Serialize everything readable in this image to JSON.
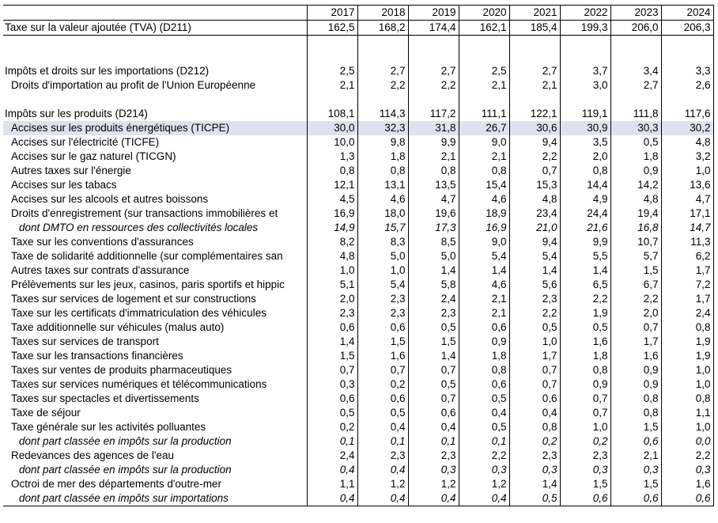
{
  "years": [
    "2017",
    "2018",
    "2019",
    "2020",
    "2021",
    "2022",
    "2023",
    "2024"
  ],
  "rows": [
    {
      "label": "Taxe sur la valeur ajoutée (TVA) (D211)",
      "values": [
        "162,5",
        "168,2",
        "174,4",
        "162,1",
        "185,4",
        "199,3",
        "206,0",
        "206,3"
      ],
      "indent": 0,
      "italic": false
    },
    {
      "label": "",
      "values": [
        "",
        "",
        "",
        "",
        "",
        "",
        "",
        ""
      ],
      "indent": 0,
      "italic": false
    },
    {
      "label": "",
      "values": [
        "",
        "",
        "",
        "",
        "",
        "",
        "",
        ""
      ],
      "indent": 0,
      "italic": false
    },
    {
      "label": "Impôts et droits sur les importations (D212)",
      "values": [
        "2,5",
        "2,7",
        "2,7",
        "2,5",
        "2,7",
        "3,7",
        "3,4",
        "3,3"
      ],
      "indent": 0,
      "italic": false
    },
    {
      "label": "Droits d'importation au profit de l'Union Européenne",
      "values": [
        "2,1",
        "2,2",
        "2,2",
        "2,1",
        "2,1",
        "3,0",
        "2,7",
        "2,6"
      ],
      "indent": 1,
      "italic": false
    },
    {
      "label": "",
      "values": [
        "",
        "",
        "",
        "",
        "",
        "",
        "",
        ""
      ],
      "indent": 0,
      "italic": false
    },
    {
      "label": "Impôts sur les produits (D214)",
      "values": [
        "108,1",
        "114,3",
        "117,2",
        "111,1",
        "122,1",
        "119,1",
        "111,8",
        "117,6"
      ],
      "indent": 0,
      "italic": false
    },
    {
      "label": "Accises sur les produits énergétiques (TICPE)",
      "values": [
        "30,0",
        "32,3",
        "31,8",
        "26,7",
        "30,6",
        "30,9",
        "30,3",
        "30,2"
      ],
      "indent": 1,
      "italic": false,
      "highlight": true
    },
    {
      "label": "Accises sur l'électricité (TICFE)",
      "values": [
        "10,0",
        "9,8",
        "9,9",
        "9,0",
        "9,4",
        "3,5",
        "0,5",
        "4,8"
      ],
      "indent": 1,
      "italic": false
    },
    {
      "label": "Accises sur le gaz naturel (TICGN)",
      "values": [
        "1,3",
        "1,8",
        "2,1",
        "2,1",
        "2,2",
        "2,0",
        "1,8",
        "3,2"
      ],
      "indent": 1,
      "italic": false
    },
    {
      "label": "Autres taxes sur l'énergie",
      "values": [
        "0,8",
        "0,8",
        "0,8",
        "0,8",
        "0,7",
        "0,8",
        "0,9",
        "1,0"
      ],
      "indent": 1,
      "italic": false
    },
    {
      "label": "Accises sur les tabacs",
      "values": [
        "12,1",
        "13,1",
        "13,5",
        "15,4",
        "15,3",
        "14,4",
        "14,2",
        "13,6"
      ],
      "indent": 1,
      "italic": false
    },
    {
      "label": "Accises sur les alcools et autres boissons",
      "values": [
        "4,5",
        "4,6",
        "4,7",
        "4,6",
        "4,8",
        "4,9",
        "4,8",
        "4,7"
      ],
      "indent": 1,
      "italic": false
    },
    {
      "label": "Droits d'enregistrement (sur transactions immobilières et",
      "values": [
        "16,9",
        "18,0",
        "19,6",
        "18,9",
        "23,4",
        "24,4",
        "19,4",
        "17,1"
      ],
      "indent": 1,
      "italic": false
    },
    {
      "label": "dont DMTO en ressources des collectivités locales",
      "values": [
        "14,9",
        "15,7",
        "17,3",
        "16,9",
        "21,0",
        "21,6",
        "16,8",
        "14,7"
      ],
      "indent": 2,
      "italic": true
    },
    {
      "label": "Taxe sur les conventions d'assurances",
      "values": [
        "8,2",
        "8,3",
        "8,5",
        "9,0",
        "9,4",
        "9,9",
        "10,7",
        "11,3"
      ],
      "indent": 1,
      "italic": false
    },
    {
      "label": "Taxe de solidarité additionnelle (sur complémentaires san",
      "values": [
        "4,8",
        "5,0",
        "5,0",
        "5,4",
        "5,4",
        "5,5",
        "5,7",
        "6,2"
      ],
      "indent": 1,
      "italic": false
    },
    {
      "label": "Autres taxes sur contrats d'assurance",
      "values": [
        "1,0",
        "1,0",
        "1,4",
        "1,4",
        "1,4",
        "1,4",
        "1,5",
        "1,7"
      ],
      "indent": 1,
      "italic": false
    },
    {
      "label": "Prélèvements sur les jeux, casinos, paris sportifs et hippic",
      "values": [
        "5,1",
        "5,4",
        "5,8",
        "4,6",
        "5,6",
        "6,5",
        "6,7",
        "7,2"
      ],
      "indent": 1,
      "italic": false
    },
    {
      "label": "Taxes sur services de logement et sur constructions",
      "values": [
        "2,0",
        "2,3",
        "2,4",
        "2,1",
        "2,3",
        "2,2",
        "2,2",
        "1,7"
      ],
      "indent": 1,
      "italic": false
    },
    {
      "label": "Taxe sur les certificats d'immatriculation des véhicules",
      "values": [
        "2,3",
        "2,3",
        "2,3",
        "2,1",
        "2,2",
        "1,9",
        "2,0",
        "2,4"
      ],
      "indent": 1,
      "italic": false
    },
    {
      "label": "Taxe additionnelle sur véhicules (malus auto)",
      "values": [
        "0,6",
        "0,6",
        "0,5",
        "0,6",
        "0,5",
        "0,5",
        "0,7",
        "0,8"
      ],
      "indent": 1,
      "italic": false
    },
    {
      "label": "Taxes sur services de transport",
      "values": [
        "1,4",
        "1,5",
        "1,5",
        "0,9",
        "1,0",
        "1,6",
        "1,7",
        "1,9"
      ],
      "indent": 1,
      "italic": false
    },
    {
      "label": "Taxe sur les transactions financières",
      "values": [
        "1,5",
        "1,6",
        "1,4",
        "1,8",
        "1,7",
        "1,8",
        "1,6",
        "1,9"
      ],
      "indent": 1,
      "italic": false
    },
    {
      "label": "Taxes sur ventes de produits pharmaceutiques",
      "values": [
        "0,7",
        "0,7",
        "0,7",
        "0,8",
        "0,7",
        "0,8",
        "0,9",
        "1,0"
      ],
      "indent": 1,
      "italic": false
    },
    {
      "label": "Taxes sur services numériques et télécommunications",
      "values": [
        "0,3",
        "0,2",
        "0,5",
        "0,6",
        "0,7",
        "0,9",
        "0,9",
        "1,0"
      ],
      "indent": 1,
      "italic": false
    },
    {
      "label": "Taxes sur spectacles et divertissements",
      "values": [
        "0,6",
        "0,6",
        "0,7",
        "0,5",
        "0,6",
        "0,7",
        "0,8",
        "0,8"
      ],
      "indent": 1,
      "italic": false
    },
    {
      "label": "Taxe de séjour",
      "values": [
        "0,5",
        "0,5",
        "0,6",
        "0,4",
        "0,4",
        "0,7",
        "0,8",
        "1,1"
      ],
      "indent": 1,
      "italic": false
    },
    {
      "label": "Taxe générale sur les activités polluantes",
      "values": [
        "0,2",
        "0,4",
        "0,4",
        "0,5",
        "0,8",
        "1,0",
        "1,5",
        "1,0"
      ],
      "indent": 1,
      "italic": false
    },
    {
      "label": "dont part classée en impôts sur la production",
      "values": [
        "0,1",
        "0,1",
        "0,1",
        "0,1",
        "0,2",
        "0,2",
        "0,6",
        "0,0"
      ],
      "indent": 2,
      "italic": true
    },
    {
      "label": "Redevances des agences de l'eau",
      "values": [
        "2,4",
        "2,3",
        "2,3",
        "2,2",
        "2,3",
        "2,3",
        "2,1",
        "2,2"
      ],
      "indent": 1,
      "italic": false
    },
    {
      "label": "dont part classée en impôts sur la production",
      "values": [
        "0,4",
        "0,4",
        "0,3",
        "0,3",
        "0,3",
        "0,3",
        "0,3",
        "0,3"
      ],
      "indent": 2,
      "italic": true
    },
    {
      "label": "Octroi de mer des départements d'outre-mer",
      "values": [
        "1,1",
        "1,2",
        "1,2",
        "1,2",
        "1,4",
        "1,5",
        "1,5",
        "1,6"
      ],
      "indent": 1,
      "italic": false
    },
    {
      "label": "dont part classée en impôts sur importations",
      "values": [
        "0,4",
        "0,4",
        "0,4",
        "0,4",
        "0,5",
        "0,6",
        "0,6",
        "0,6"
      ],
      "indent": 2,
      "italic": true
    }
  ]
}
